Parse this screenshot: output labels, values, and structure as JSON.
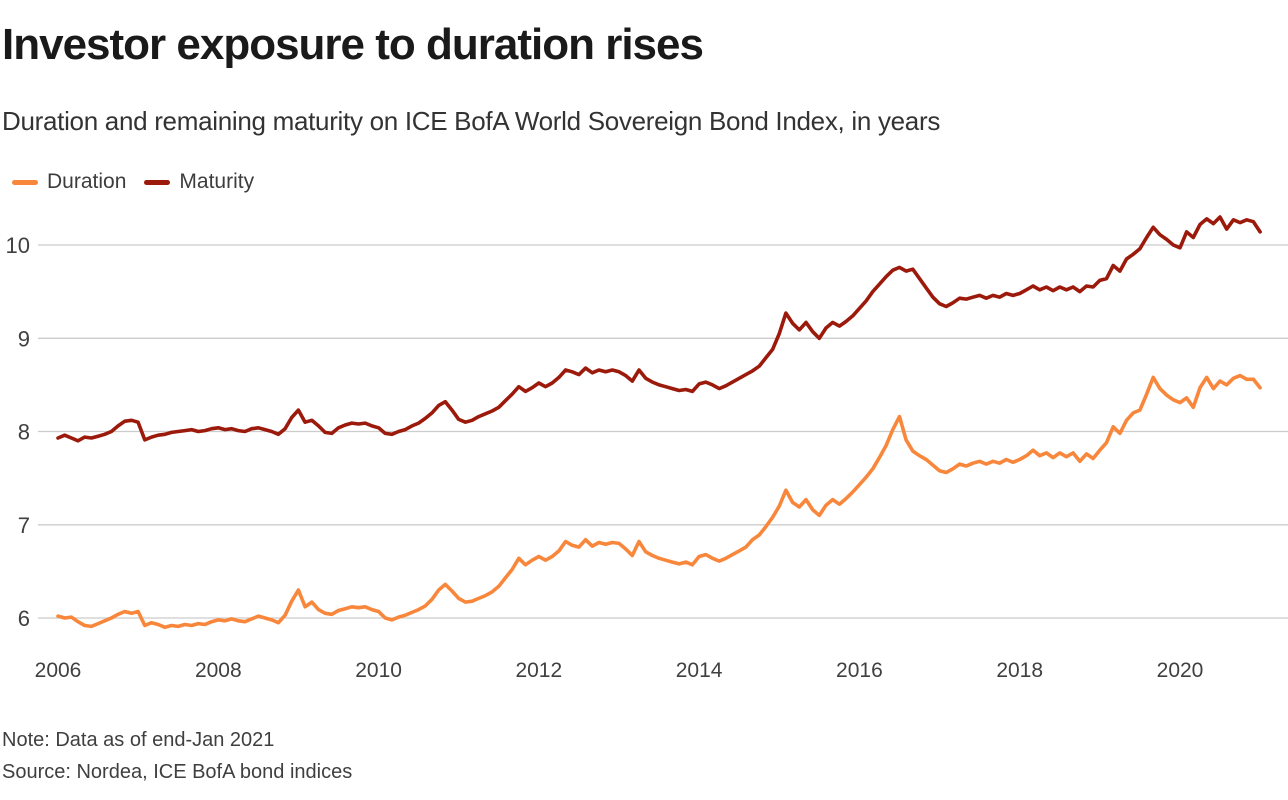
{
  "chart_data": {
    "type": "line",
    "title": "Investor exposure to duration rises",
    "subtitle": "Duration and remaining maturity on ICE BofA World Sovereign Bond Index, in years",
    "note": "Note: Data as of end-Jan 2021",
    "source": "Source: Nordea, ICE BofA bond indices",
    "x_start": "2006-01",
    "x_end": "2021-01",
    "frequency": "monthly",
    "x_ticks": [
      2006,
      2008,
      2010,
      2012,
      2014,
      2016,
      2018,
      2020
    ],
    "y_ticks": [
      6,
      7,
      8,
      9,
      10
    ],
    "ylim": [
      5.8,
      10.45
    ],
    "grid": "horizontal-only",
    "legend_position": "top-left",
    "series": [
      {
        "name": "Duration",
        "color": "#F8873C",
        "values": [
          6.02,
          6.0,
          6.01,
          5.96,
          5.92,
          5.91,
          5.94,
          5.97,
          6.0,
          6.04,
          6.07,
          6.05,
          6.07,
          5.92,
          5.95,
          5.93,
          5.9,
          5.92,
          5.91,
          5.93,
          5.92,
          5.94,
          5.93,
          5.96,
          5.98,
          5.97,
          5.99,
          5.97,
          5.96,
          5.99,
          6.02,
          6.0,
          5.98,
          5.95,
          6.03,
          6.18,
          6.3,
          6.12,
          6.17,
          6.09,
          6.05,
          6.04,
          6.08,
          6.1,
          6.12,
          6.11,
          6.12,
          6.09,
          6.07,
          6.0,
          5.98,
          6.01,
          6.03,
          6.06,
          6.09,
          6.13,
          6.2,
          6.3,
          6.36,
          6.29,
          6.21,
          6.17,
          6.18,
          6.21,
          6.24,
          6.28,
          6.34,
          6.43,
          6.52,
          6.64,
          6.57,
          6.62,
          6.66,
          6.62,
          6.66,
          6.72,
          6.82,
          6.78,
          6.76,
          6.84,
          6.77,
          6.81,
          6.79,
          6.81,
          6.8,
          6.74,
          6.67,
          6.82,
          6.71,
          6.67,
          6.64,
          6.62,
          6.6,
          6.58,
          6.6,
          6.57,
          6.66,
          6.68,
          6.64,
          6.61,
          6.64,
          6.68,
          6.72,
          6.76,
          6.84,
          6.89,
          6.98,
          7.08,
          7.2,
          7.37,
          7.24,
          7.19,
          7.27,
          7.16,
          7.1,
          7.21,
          7.27,
          7.22,
          7.28,
          7.35,
          7.43,
          7.51,
          7.6,
          7.72,
          7.85,
          8.02,
          8.16,
          7.91,
          7.79,
          7.74,
          7.7,
          7.64,
          7.58,
          7.56,
          7.6,
          7.65,
          7.63,
          7.66,
          7.68,
          7.65,
          7.68,
          7.66,
          7.7,
          7.67,
          7.7,
          7.74,
          7.8,
          7.74,
          7.77,
          7.72,
          7.77,
          7.73,
          7.77,
          7.68,
          7.76,
          7.71,
          7.8,
          7.88,
          8.05,
          7.98,
          8.12,
          8.2,
          8.23,
          8.4,
          8.58,
          8.46,
          8.39,
          8.34,
          8.31,
          8.36,
          8.26,
          8.47,
          8.58,
          8.46,
          8.54,
          8.5,
          8.57,
          8.6,
          8.56,
          8.56,
          8.47
        ]
      },
      {
        "name": "Maturity",
        "color": "#9C1A0B",
        "values": [
          7.93,
          7.96,
          7.93,
          7.9,
          7.94,
          7.93,
          7.95,
          7.97,
          8.0,
          8.06,
          8.11,
          8.12,
          8.1,
          7.91,
          7.94,
          7.96,
          7.97,
          7.99,
          8.0,
          8.01,
          8.02,
          8.0,
          8.01,
          8.03,
          8.04,
          8.02,
          8.03,
          8.01,
          8.0,
          8.03,
          8.04,
          8.02,
          8.0,
          7.97,
          8.03,
          8.15,
          8.23,
          8.1,
          8.12,
          8.06,
          7.99,
          7.98,
          8.04,
          8.07,
          8.09,
          8.08,
          8.09,
          8.06,
          8.04,
          7.98,
          7.97,
          8.0,
          8.02,
          8.06,
          8.09,
          8.14,
          8.2,
          8.28,
          8.32,
          8.23,
          8.13,
          8.1,
          8.12,
          8.16,
          8.19,
          8.22,
          8.26,
          8.33,
          8.4,
          8.48,
          8.43,
          8.47,
          8.52,
          8.48,
          8.52,
          8.58,
          8.66,
          8.64,
          8.61,
          8.68,
          8.63,
          8.66,
          8.64,
          8.66,
          8.64,
          8.6,
          8.54,
          8.66,
          8.57,
          8.53,
          8.5,
          8.48,
          8.46,
          8.44,
          8.45,
          8.43,
          8.51,
          8.53,
          8.5,
          8.46,
          8.49,
          8.53,
          8.57,
          8.61,
          8.65,
          8.7,
          8.79,
          8.88,
          9.05,
          9.27,
          9.16,
          9.09,
          9.17,
          9.07,
          9.0,
          9.11,
          9.17,
          9.13,
          9.18,
          9.24,
          9.32,
          9.4,
          9.5,
          9.58,
          9.66,
          9.73,
          9.76,
          9.72,
          9.74,
          9.64,
          9.54,
          9.44,
          9.37,
          9.34,
          9.38,
          9.43,
          9.42,
          9.44,
          9.46,
          9.43,
          9.46,
          9.44,
          9.48,
          9.46,
          9.48,
          9.52,
          9.56,
          9.52,
          9.55,
          9.51,
          9.55,
          9.52,
          9.55,
          9.5,
          9.56,
          9.55,
          9.62,
          9.64,
          9.78,
          9.72,
          9.85,
          9.9,
          9.96,
          10.08,
          10.19,
          10.11,
          10.06,
          10.0,
          9.97,
          10.14,
          10.08,
          10.22,
          10.28,
          10.23,
          10.3,
          10.17,
          10.27,
          10.24,
          10.27,
          10.25,
          10.14
        ]
      }
    ]
  }
}
